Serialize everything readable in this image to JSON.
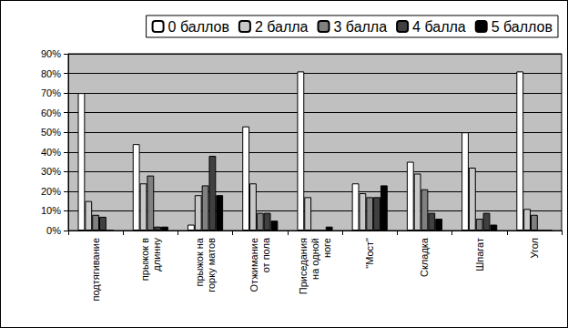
{
  "chart_data": {
    "type": "bar",
    "categories": [
      "подтягивание",
      "прыжок в\nдлинну",
      "прыжок на\nгорку матов",
      "Отжимание\nот пола",
      "Приседания\nна одной\nноге",
      "\"Мост\"",
      "Складка",
      "Шпагат",
      "Угол"
    ],
    "series": [
      {
        "name": "0 баллов",
        "color": "#ffffff",
        "values": [
          70,
          44,
          3,
          53,
          81,
          24,
          35,
          50,
          81
        ]
      },
      {
        "name": "2 балла",
        "color": "#c8c8c8",
        "values": [
          15,
          24,
          18,
          24,
          17,
          19,
          29,
          32,
          11
        ]
      },
      {
        "name": "3 балла",
        "color": "#808080",
        "values": [
          8,
          28,
          23,
          9,
          0,
          17,
          21,
          6,
          8
        ]
      },
      {
        "name": "4 балла",
        "color": "#404040",
        "values": [
          7,
          2,
          38,
          9,
          0,
          17,
          9,
          9,
          0
        ]
      },
      {
        "name": "5 баллов",
        "color": "#000000",
        "values": [
          0,
          2,
          18,
          5,
          2,
          23,
          6,
          3,
          0
        ]
      }
    ],
    "ylim": [
      0,
      90
    ],
    "yticks": [
      {
        "value": 0,
        "label": "0%"
      },
      {
        "value": 10,
        "label": "10%"
      },
      {
        "value": 20,
        "label": "20%"
      },
      {
        "value": 30,
        "label": "30%"
      },
      {
        "value": 40,
        "label": "40%"
      },
      {
        "value": 50,
        "label": "50%"
      },
      {
        "value": 60,
        "label": "60%"
      },
      {
        "value": 70,
        "label": "70%"
      },
      {
        "value": 80,
        "label": "80%"
      },
      {
        "value": 90,
        "label": "90%"
      }
    ],
    "grid": true,
    "legend": "top-right"
  }
}
